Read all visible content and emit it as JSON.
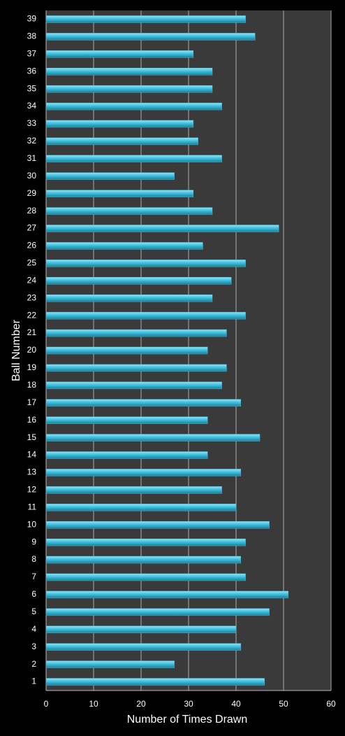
{
  "chart_data": {
    "type": "bar",
    "orientation": "horizontal",
    "x_label": "Number of Times Drawn",
    "y_label": "Ball Number",
    "categories": [
      "1",
      "2",
      "3",
      "4",
      "5",
      "6",
      "7",
      "8",
      "9",
      "10",
      "11",
      "12",
      "13",
      "14",
      "15",
      "16",
      "17",
      "18",
      "19",
      "20",
      "21",
      "22",
      "23",
      "24",
      "25",
      "26",
      "27",
      "28",
      "29",
      "30",
      "31",
      "32",
      "33",
      "34",
      "35",
      "36",
      "37",
      "38",
      "39"
    ],
    "values": [
      46,
      27,
      41,
      40,
      47,
      51,
      42,
      41,
      42,
      47,
      40,
      37,
      41,
      34,
      45,
      34,
      41,
      37,
      38,
      34,
      38,
      42,
      35,
      39,
      42,
      33,
      49,
      35,
      31,
      27,
      37,
      32,
      31,
      37,
      35,
      35,
      31,
      44,
      42
    ],
    "color": "#3fbfdf",
    "xlim": [
      0,
      60
    ],
    "xticks": [
      0,
      10,
      20,
      30,
      40,
      50,
      60
    ],
    "grid": true
  }
}
